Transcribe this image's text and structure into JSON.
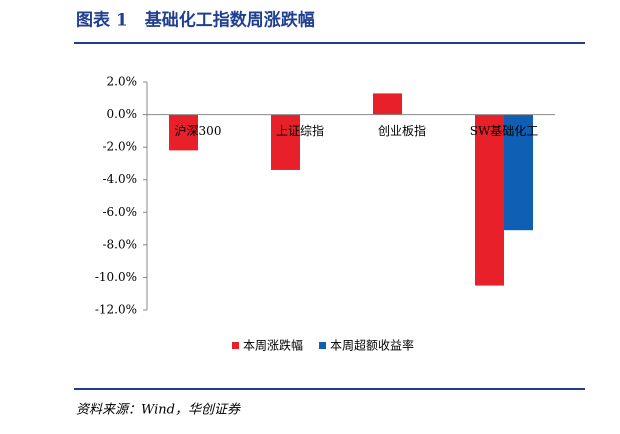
{
  "chart_data": {
    "type": "bar",
    "title": "图表 1　基础化工指数周涨跌幅",
    "source": "资料来源：Wind，华创证券",
    "categories": [
      "沪深300",
      "上证综指",
      "创业板指",
      "SW基础化工"
    ],
    "series": [
      {
        "name": "本周涨跌幅",
        "color": "#e8202a",
        "values": [
          -2.2,
          -3.4,
          1.3,
          -10.5
        ]
      },
      {
        "name": "本周超额收益率",
        "color": "#0f5fb5",
        "values": [
          null,
          null,
          null,
          -7.1
        ]
      }
    ],
    "ylim": [
      -12,
      2
    ],
    "yticks": [
      {
        "value": 2,
        "label": "2.0%"
      },
      {
        "value": 0,
        "label": "0.0%"
      },
      {
        "value": -2,
        "label": "-2.0%"
      },
      {
        "value": -4,
        "label": "-4.0%"
      },
      {
        "value": -6,
        "label": "-6.0%"
      },
      {
        "value": -8,
        "label": "-8.0%"
      },
      {
        "value": -10,
        "label": "-10.0%"
      },
      {
        "value": -12,
        "label": "-12.0%"
      }
    ],
    "legend": "bottom"
  }
}
